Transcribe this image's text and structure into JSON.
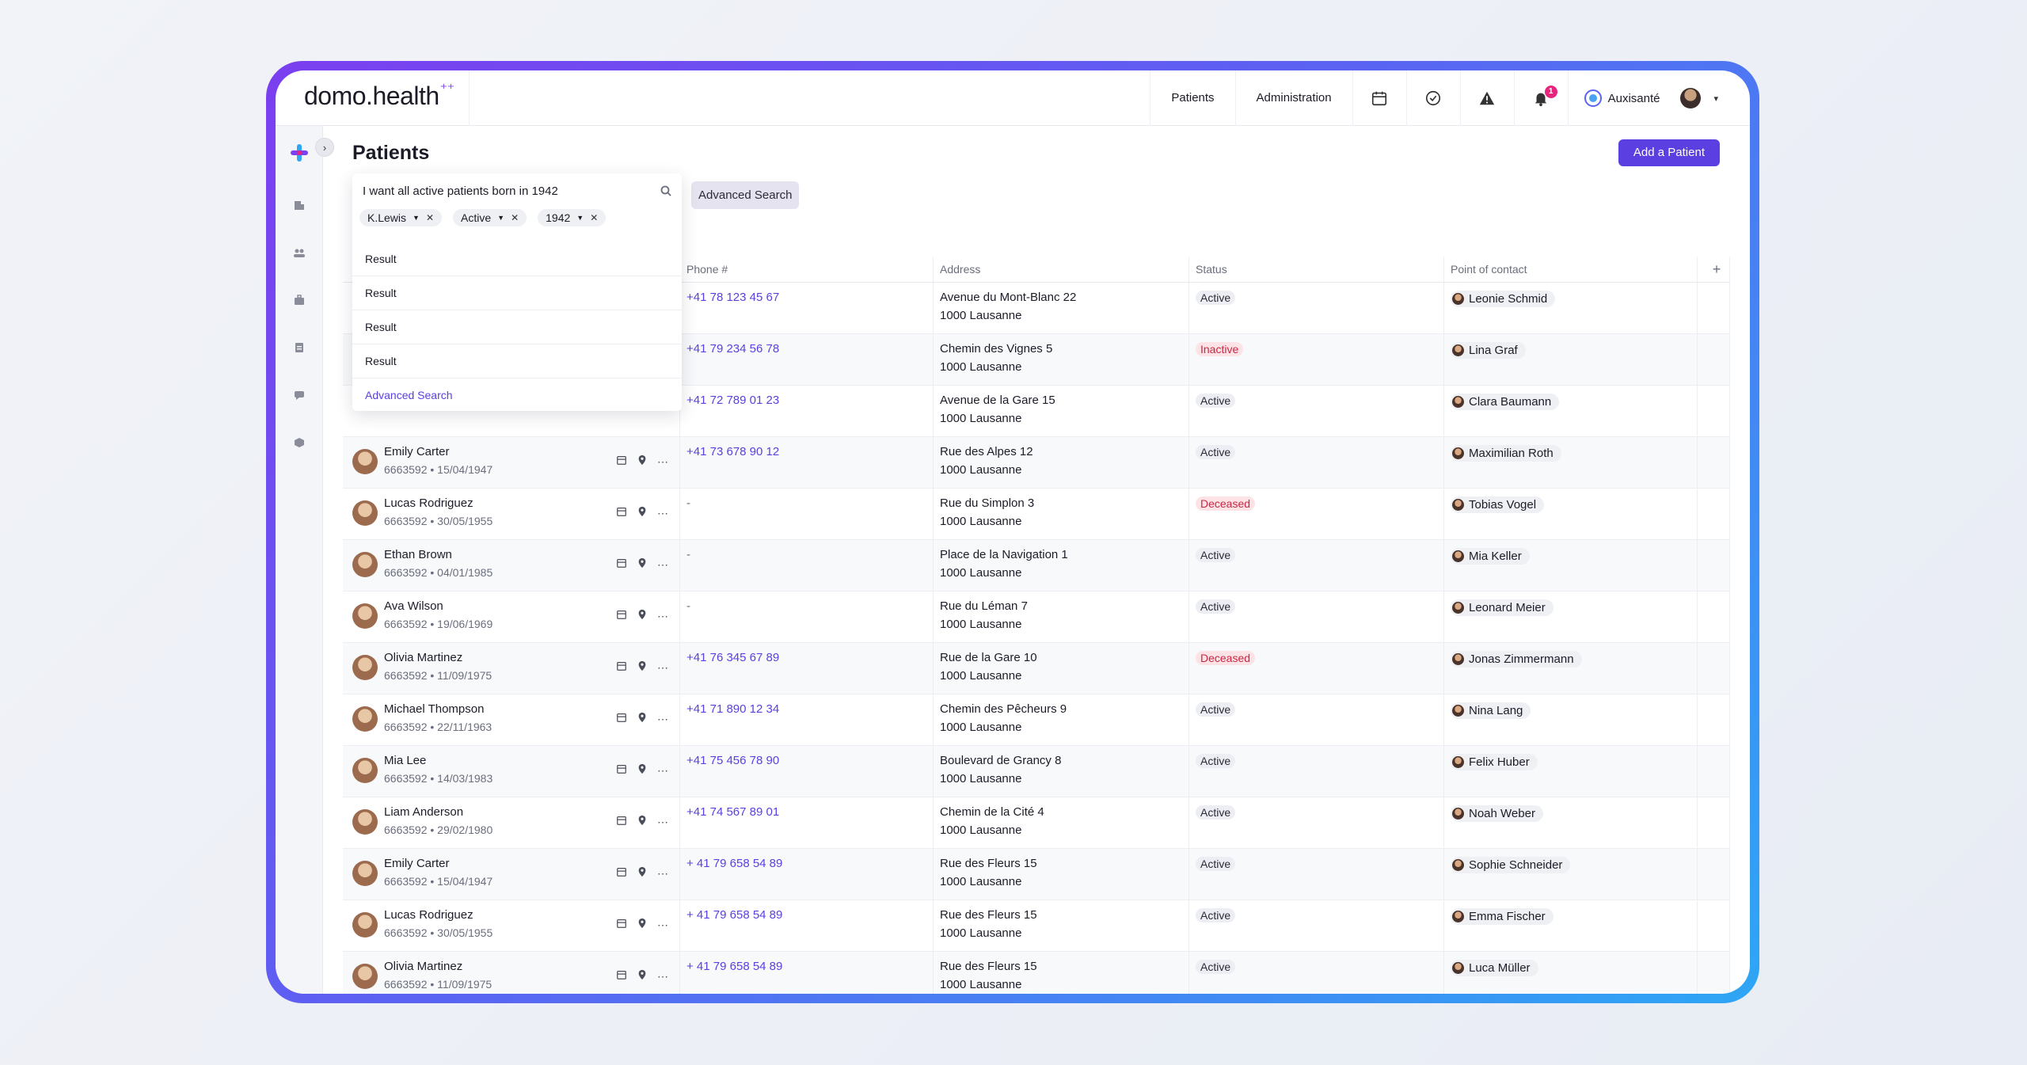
{
  "brand": {
    "name": "domo.health",
    "spark": "⁺⁺"
  },
  "topnav": {
    "patients": "Patients",
    "administration": "Administration",
    "bell_count": "1",
    "org_name": "Auxisanté"
  },
  "page": {
    "title": "Patients",
    "add_button": "Add a Patient",
    "advanced_search_button": "Advanced Search"
  },
  "search": {
    "query": "I want all active patients born in 1942",
    "chips": [
      "K.Lewis",
      "Active",
      "1942"
    ],
    "results": [
      "Result",
      "Result",
      "Result",
      "Result"
    ],
    "advanced_link": "Advanced Search"
  },
  "table": {
    "columns": {
      "phone": "Phone #",
      "address": "Address",
      "status": "Status",
      "poc": "Point of contact",
      "add": "+"
    },
    "rows": [
      {
        "name": "",
        "meta": "",
        "phone": "+41 78 123 45 67",
        "addr1": "Avenue du Mont-Blanc 22",
        "addr2": "1000 Lausanne",
        "status": "Active",
        "poc": "Leonie Schmid"
      },
      {
        "name": "",
        "meta": "",
        "phone": "+41 79 234 56 78",
        "addr1": "Chemin des Vignes 5",
        "addr2": "1000 Lausanne",
        "status": "Inactive",
        "poc": "Lina Graf"
      },
      {
        "name": "",
        "meta": "",
        "phone": "+41 72 789 01 23",
        "addr1": "Avenue de la Gare 15",
        "addr2": "1000 Lausanne",
        "status": "Active",
        "poc": "Clara Baumann"
      },
      {
        "name": "Emily Carter",
        "meta": "6663592 • 15/04/1947",
        "phone": "+41 73 678 90 12",
        "addr1": "Rue des Alpes 12",
        "addr2": "1000 Lausanne",
        "status": "Active",
        "poc": "Maximilian Roth"
      },
      {
        "name": "Lucas Rodriguez",
        "meta": "6663592 • 30/05/1955",
        "phone": "-",
        "addr1": "Rue du Simplon 3",
        "addr2": "1000 Lausanne",
        "status": "Deceased",
        "poc": "Tobias Vogel"
      },
      {
        "name": "Ethan Brown",
        "meta": "6663592 • 04/01/1985",
        "phone": "-",
        "addr1": "Place de la Navigation 1",
        "addr2": "1000 Lausanne",
        "status": "Active",
        "poc": "Mia Keller"
      },
      {
        "name": "Ava Wilson",
        "meta": "6663592 • 19/06/1969",
        "phone": "-",
        "addr1": "Rue du Léman 7",
        "addr2": "1000 Lausanne",
        "status": "Active",
        "poc": "Leonard Meier"
      },
      {
        "name": "Olivia Martinez",
        "meta": "6663592 • 11/09/1975",
        "phone": "+41 76 345 67 89",
        "addr1": "Rue de la Gare 10",
        "addr2": "1000 Lausanne",
        "status": "Deceased",
        "poc": "Jonas Zimmermann"
      },
      {
        "name": "Michael Thompson",
        "meta": "6663592 • 22/11/1963",
        "phone": "+41 71 890 12 34",
        "addr1": "Chemin des Pêcheurs 9",
        "addr2": "1000 Lausanne",
        "status": "Active",
        "poc": "Nina Lang"
      },
      {
        "name": "Mia Lee",
        "meta": "6663592 • 14/03/1983",
        "phone": "+41 75 456 78 90",
        "addr1": "Boulevard de Grancy 8",
        "addr2": "1000 Lausanne",
        "status": "Active",
        "poc": "Felix Huber"
      },
      {
        "name": "Liam Anderson",
        "meta": "6663592 • 29/02/1980",
        "phone": "+41 74 567 89 01",
        "addr1": "Chemin de la Cité 4",
        "addr2": "1000 Lausanne",
        "status": "Active",
        "poc": "Noah Weber"
      },
      {
        "name": "Emily Carter",
        "meta": "6663592 • 15/04/1947",
        "phone": "+ 41 79 658 54 89",
        "addr1": "Rue des Fleurs 15",
        "addr2": "1000 Lausanne",
        "status": "Active",
        "poc": "Sophie Schneider"
      },
      {
        "name": "Lucas Rodriguez",
        "meta": "6663592 • 30/05/1955",
        "phone": "+ 41 79 658 54 89",
        "addr1": "Rue des Fleurs 15",
        "addr2": "1000 Lausanne",
        "status": "Active",
        "poc": "Emma Fischer"
      },
      {
        "name": "Olivia Martinez",
        "meta": "6663592 • 11/09/1975",
        "phone": "+ 41 79 658 54 89",
        "addr1": "Rue des Fleurs 15",
        "addr2": "1000 Lausanne",
        "status": "Active",
        "poc": "Luca Müller"
      }
    ]
  },
  "icons": {
    "nav": [
      "calendar-icon",
      "check-circle-icon",
      "warning-icon",
      "bell-icon"
    ],
    "sidebar": [
      "building-icon",
      "people-icon",
      "briefcase-icon",
      "document-icon",
      "chat-icon",
      "cube-icon"
    ],
    "row": [
      "calendar-icon",
      "location-pin-icon",
      "more-icon"
    ]
  },
  "colors": {
    "accent": "#5b3fe0",
    "danger": "#c62845",
    "frame_start": "#7b3ff0",
    "frame_end": "#2ea6f5"
  }
}
